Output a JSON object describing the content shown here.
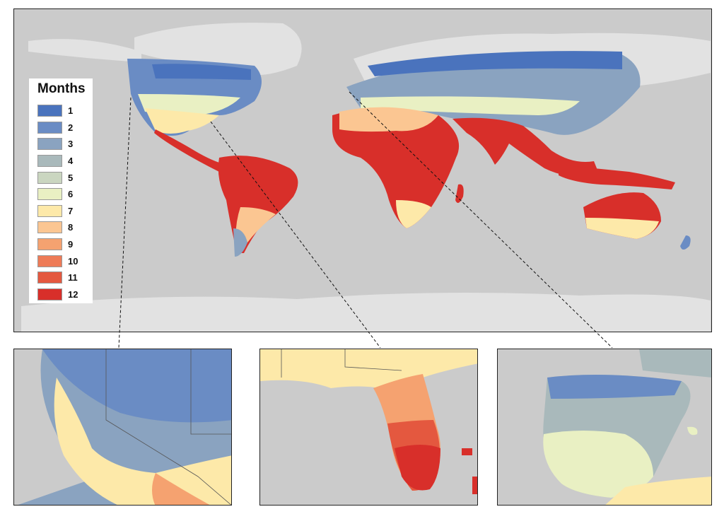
{
  "legend": {
    "title": "Months",
    "items": [
      {
        "label": "1",
        "color": "#4a73bd"
      },
      {
        "label": "2",
        "color": "#6a8cc4"
      },
      {
        "label": "3",
        "color": "#8aa3c0"
      },
      {
        "label": "4",
        "color": "#a9b9bb"
      },
      {
        "label": "5",
        "color": "#cad6c0"
      },
      {
        "label": "6",
        "color": "#e9f0c3"
      },
      {
        "label": "7",
        "color": "#fde9a9"
      },
      {
        "label": "8",
        "color": "#fbc692"
      },
      {
        "label": "9",
        "color": "#f5a270"
      },
      {
        "label": "10",
        "color": "#ee7b57"
      },
      {
        "label": "11",
        "color": "#e4583f"
      },
      {
        "label": "12",
        "color": "#d82f2a"
      }
    ]
  },
  "colors": {
    "ocean": "#cbcbcb",
    "nodata_land": "#e2e2e2"
  },
  "insets": [
    {
      "name": "southwest-usa"
    },
    {
      "name": "florida"
    },
    {
      "name": "iberia"
    }
  ]
}
